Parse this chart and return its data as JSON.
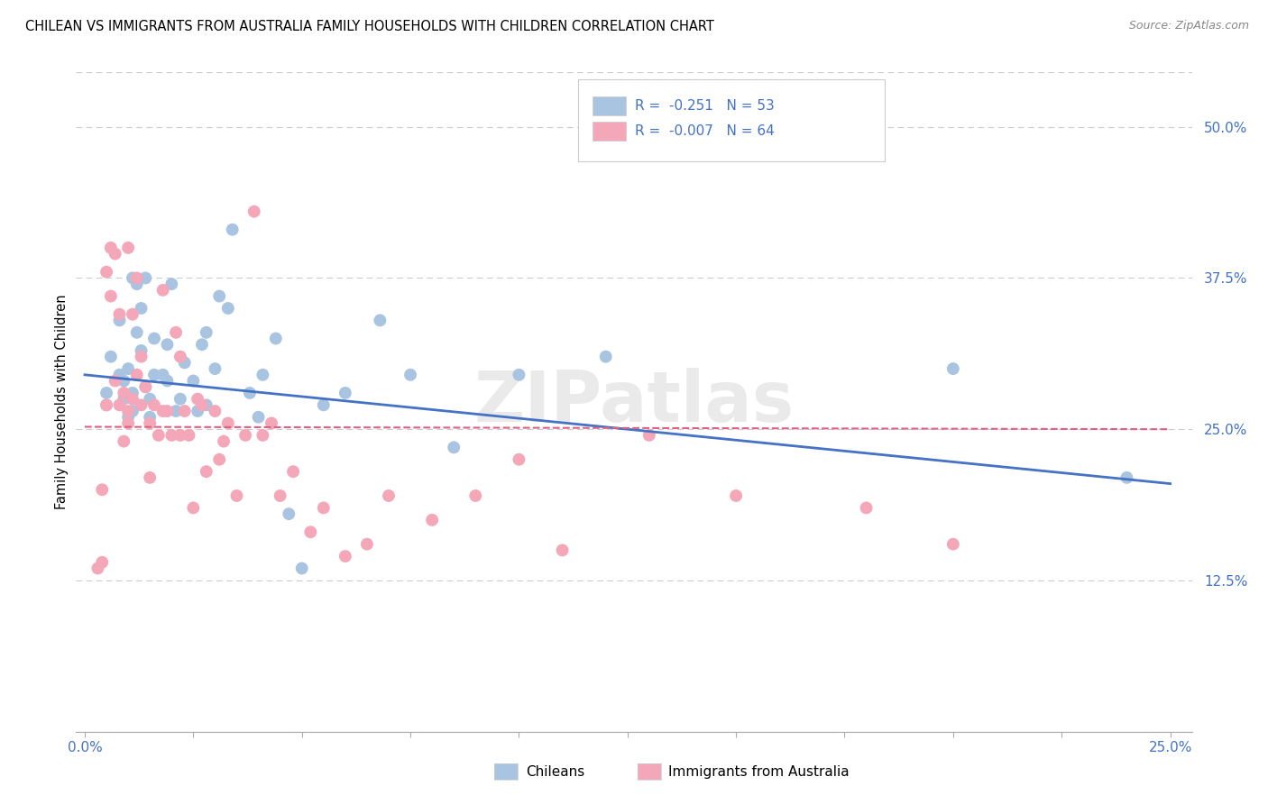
{
  "title": "CHILEAN VS IMMIGRANTS FROM AUSTRALIA FAMILY HOUSEHOLDS WITH CHILDREN CORRELATION CHART",
  "source": "Source: ZipAtlas.com",
  "ylabel": "Family Households with Children",
  "ytick_labels": [
    "12.5%",
    "25.0%",
    "37.5%",
    "50.0%"
  ],
  "ytick_values": [
    0.125,
    0.25,
    0.375,
    0.5
  ],
  "xtick_values": [
    0.0,
    0.025,
    0.05,
    0.075,
    0.1,
    0.125,
    0.15,
    0.175,
    0.2,
    0.225,
    0.25
  ],
  "xlim": [
    -0.002,
    0.255
  ],
  "ylim": [
    0.0,
    0.545
  ],
  "blue_color": "#a8c4e0",
  "pink_color": "#f4a7b9",
  "blue_line_color": "#4472c4",
  "pink_line_color": "#e06080",
  "axis_color": "#4472c4",
  "legend_blue_label": "Chileans",
  "legend_pink_label": "Immigrants from Australia",
  "R_blue": -0.251,
  "N_blue": 53,
  "R_pink": -0.007,
  "N_pink": 64,
  "blue_scatter_x": [
    0.005,
    0.005,
    0.006,
    0.008,
    0.008,
    0.009,
    0.009,
    0.01,
    0.01,
    0.011,
    0.011,
    0.011,
    0.012,
    0.012,
    0.013,
    0.013,
    0.014,
    0.014,
    0.015,
    0.015,
    0.016,
    0.016,
    0.018,
    0.019,
    0.019,
    0.02,
    0.021,
    0.022,
    0.023,
    0.025,
    0.026,
    0.027,
    0.028,
    0.028,
    0.03,
    0.031,
    0.033,
    0.034,
    0.038,
    0.04,
    0.041,
    0.044,
    0.047,
    0.05,
    0.055,
    0.06,
    0.068,
    0.075,
    0.085,
    0.1,
    0.12,
    0.2,
    0.24
  ],
  "blue_scatter_y": [
    0.27,
    0.28,
    0.31,
    0.295,
    0.34,
    0.275,
    0.29,
    0.26,
    0.3,
    0.265,
    0.28,
    0.375,
    0.33,
    0.37,
    0.315,
    0.35,
    0.285,
    0.375,
    0.275,
    0.26,
    0.295,
    0.325,
    0.295,
    0.29,
    0.32,
    0.37,
    0.265,
    0.275,
    0.305,
    0.29,
    0.265,
    0.32,
    0.33,
    0.27,
    0.3,
    0.36,
    0.35,
    0.415,
    0.28,
    0.26,
    0.295,
    0.325,
    0.18,
    0.135,
    0.27,
    0.28,
    0.34,
    0.295,
    0.235,
    0.295,
    0.31,
    0.3,
    0.21
  ],
  "pink_scatter_x": [
    0.003,
    0.004,
    0.004,
    0.005,
    0.005,
    0.006,
    0.006,
    0.007,
    0.007,
    0.008,
    0.008,
    0.009,
    0.009,
    0.01,
    0.01,
    0.01,
    0.011,
    0.011,
    0.012,
    0.012,
    0.013,
    0.013,
    0.014,
    0.015,
    0.015,
    0.016,
    0.017,
    0.018,
    0.018,
    0.019,
    0.02,
    0.021,
    0.022,
    0.022,
    0.023,
    0.024,
    0.025,
    0.026,
    0.027,
    0.028,
    0.03,
    0.031,
    0.032,
    0.033,
    0.035,
    0.037,
    0.039,
    0.041,
    0.043,
    0.045,
    0.048,
    0.052,
    0.055,
    0.06,
    0.065,
    0.07,
    0.08,
    0.09,
    0.1,
    0.11,
    0.13,
    0.15,
    0.18,
    0.2
  ],
  "pink_scatter_y": [
    0.135,
    0.14,
    0.2,
    0.27,
    0.38,
    0.36,
    0.4,
    0.29,
    0.395,
    0.27,
    0.345,
    0.24,
    0.28,
    0.255,
    0.265,
    0.4,
    0.275,
    0.345,
    0.375,
    0.295,
    0.31,
    0.27,
    0.285,
    0.21,
    0.255,
    0.27,
    0.245,
    0.265,
    0.365,
    0.265,
    0.245,
    0.33,
    0.31,
    0.245,
    0.265,
    0.245,
    0.185,
    0.275,
    0.27,
    0.215,
    0.265,
    0.225,
    0.24,
    0.255,
    0.195,
    0.245,
    0.43,
    0.245,
    0.255,
    0.195,
    0.215,
    0.165,
    0.185,
    0.145,
    0.155,
    0.195,
    0.175,
    0.195,
    0.225,
    0.15,
    0.245,
    0.195,
    0.185,
    0.155
  ],
  "blue_trendline_x": [
    0.0,
    0.25
  ],
  "blue_trendline_y": [
    0.295,
    0.205
  ],
  "pink_trendline_x": [
    0.0,
    0.25
  ],
  "pink_trendline_y": [
    0.252,
    0.25
  ],
  "background_color": "#ffffff",
  "grid_color": "#cccccc",
  "watermark": "ZIPatlas"
}
